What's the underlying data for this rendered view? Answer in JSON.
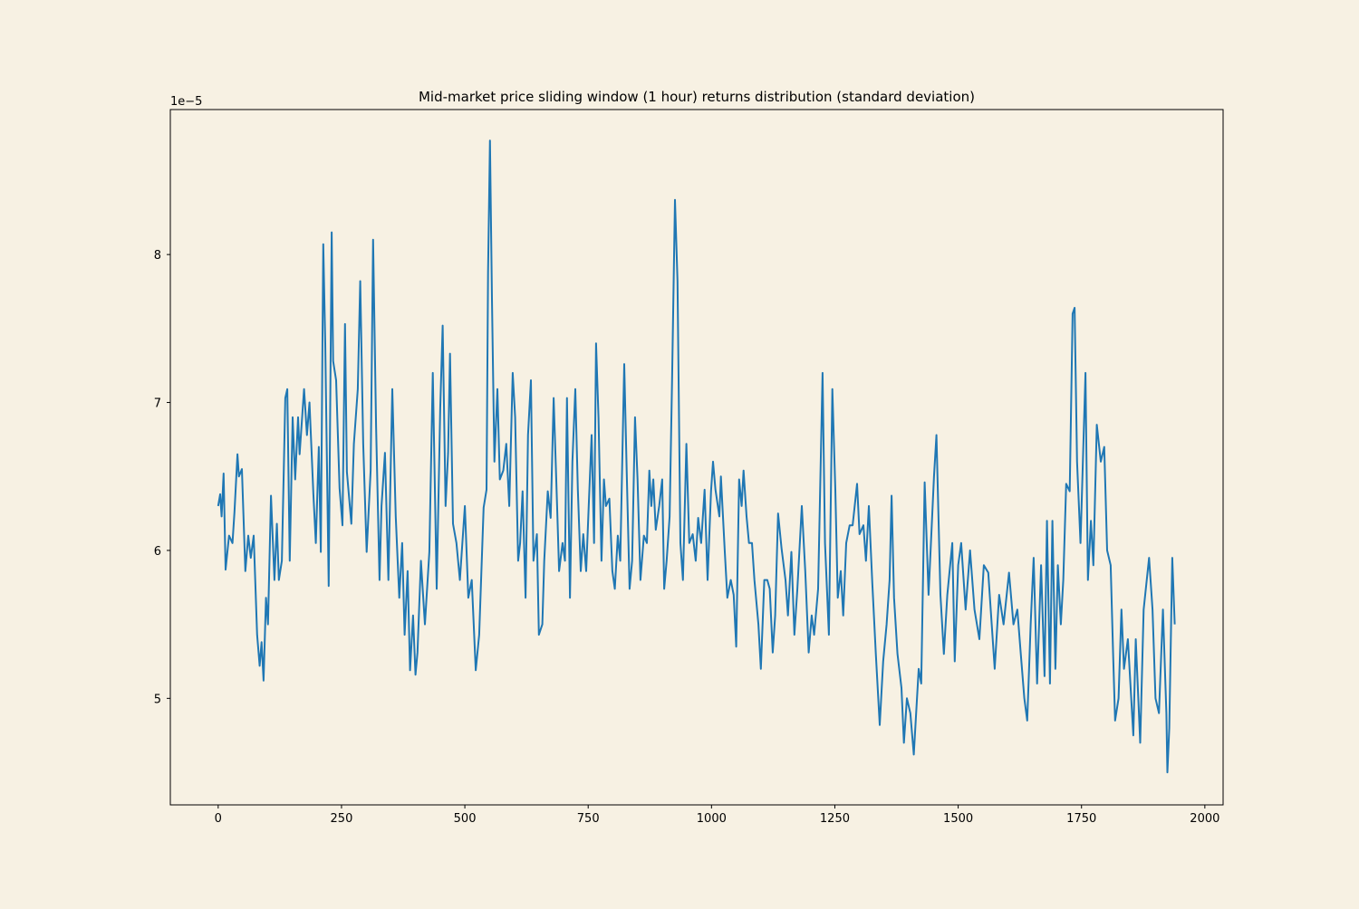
{
  "chart_data": {
    "type": "line",
    "title": "Mid-market price sliding window (1 hour) returns distribution (standard deviation)",
    "xlabel": "",
    "ylabel": "",
    "y_offset_label": "1e−5",
    "xlim": [
      -97,
      2037
    ],
    "ylim": [
      4.28,
      8.98
    ],
    "x_ticks": [
      0,
      250,
      500,
      750,
      1000,
      1250,
      1500,
      1750,
      2000
    ],
    "x_tick_labels": [
      "0",
      "250",
      "500",
      "750",
      "1000",
      "1250",
      "1500",
      "1750",
      "2000"
    ],
    "y_ticks": [
      5,
      6,
      7,
      8
    ],
    "y_tick_labels": [
      "5",
      "6",
      "7",
      "8"
    ],
    "grid": false,
    "colors": {
      "line": "#1f77b4",
      "background": "#f7f1e3"
    },
    "series": [
      {
        "points": [
          [
            0,
            6.3
          ],
          [
            4,
            6.38
          ],
          [
            7,
            6.23
          ],
          [
            11,
            6.52
          ],
          [
            15,
            5.87
          ],
          [
            22,
            6.1
          ],
          [
            29,
            6.05
          ],
          [
            33,
            6.26
          ],
          [
            39,
            6.65
          ],
          [
            42,
            6.5
          ],
          [
            48,
            6.55
          ],
          [
            55,
            5.86
          ],
          [
            61,
            6.1
          ],
          [
            66,
            5.95
          ],
          [
            72,
            6.1
          ],
          [
            79,
            5.43
          ],
          [
            84,
            5.22
          ],
          [
            88,
            5.38
          ],
          [
            92,
            5.12
          ],
          [
            97,
            5.68
          ],
          [
            101,
            5.5
          ],
          [
            107,
            6.37
          ],
          [
            114,
            5.8
          ],
          [
            119,
            6.18
          ],
          [
            123,
            5.8
          ],
          [
            129,
            5.93
          ],
          [
            136,
            7.03
          ],
          [
            140,
            7.09
          ],
          [
            145,
            5.93
          ],
          [
            151,
            6.9
          ],
          [
            156,
            6.48
          ],
          [
            162,
            6.9
          ],
          [
            165,
            6.65
          ],
          [
            174,
            7.09
          ],
          [
            180,
            6.78
          ],
          [
            185,
            7.0
          ],
          [
            193,
            6.38
          ],
          [
            198,
            6.05
          ],
          [
            204,
            6.7
          ],
          [
            208,
            5.99
          ],
          [
            213,
            8.07
          ],
          [
            217,
            7.4
          ],
          [
            224,
            5.76
          ],
          [
            230,
            8.15
          ],
          [
            233,
            7.28
          ],
          [
            239,
            7.15
          ],
          [
            246,
            6.42
          ],
          [
            252,
            6.17
          ],
          [
            257,
            7.53
          ],
          [
            261,
            6.53
          ],
          [
            270,
            6.18
          ],
          [
            275,
            6.72
          ],
          [
            283,
            7.09
          ],
          [
            288,
            7.82
          ],
          [
            294,
            6.72
          ],
          [
            301,
            5.99
          ],
          [
            309,
            6.54
          ],
          [
            314,
            8.1
          ],
          [
            320,
            6.84
          ],
          [
            327,
            5.8
          ],
          [
            331,
            6.3
          ],
          [
            338,
            6.66
          ],
          [
            345,
            5.8
          ],
          [
            353,
            7.09
          ],
          [
            360,
            6.23
          ],
          [
            367,
            5.68
          ],
          [
            373,
            6.05
          ],
          [
            378,
            5.43
          ],
          [
            384,
            5.86
          ],
          [
            389,
            5.19
          ],
          [
            395,
            5.56
          ],
          [
            400,
            5.16
          ],
          [
            404,
            5.31
          ],
          [
            411,
            5.93
          ],
          [
            419,
            5.5
          ],
          [
            428,
            5.99
          ],
          [
            435,
            7.2
          ],
          [
            443,
            5.74
          ],
          [
            450,
            6.96
          ],
          [
            455,
            7.52
          ],
          [
            461,
            6.3
          ],
          [
            466,
            6.66
          ],
          [
            470,
            7.33
          ],
          [
            476,
            6.18
          ],
          [
            483,
            6.05
          ],
          [
            490,
            5.8
          ],
          [
            500,
            6.3
          ],
          [
            507,
            5.68
          ],
          [
            514,
            5.8
          ],
          [
            522,
            5.19
          ],
          [
            529,
            5.43
          ],
          [
            538,
            6.29
          ],
          [
            544,
            6.41
          ],
          [
            547,
            7.88
          ],
          [
            551,
            8.77
          ],
          [
            555,
            7.7
          ],
          [
            560,
            6.6
          ],
          [
            566,
            7.09
          ],
          [
            571,
            6.48
          ],
          [
            578,
            6.54
          ],
          [
            584,
            6.72
          ],
          [
            590,
            6.3
          ],
          [
            597,
            7.2
          ],
          [
            602,
            6.9
          ],
          [
            608,
            5.93
          ],
          [
            612,
            6.05
          ],
          [
            617,
            6.4
          ],
          [
            623,
            5.68
          ],
          [
            628,
            6.78
          ],
          [
            634,
            7.15
          ],
          [
            639,
            5.93
          ],
          [
            646,
            6.11
          ],
          [
            650,
            5.43
          ],
          [
            657,
            5.5
          ],
          [
            661,
            5.93
          ],
          [
            668,
            6.4
          ],
          [
            674,
            6.22
          ],
          [
            680,
            7.03
          ],
          [
            687,
            6.3
          ],
          [
            691,
            5.86
          ],
          [
            698,
            6.05
          ],
          [
            703,
            5.93
          ],
          [
            707,
            7.03
          ],
          [
            713,
            5.68
          ],
          [
            718,
            6.6
          ],
          [
            724,
            7.09
          ],
          [
            729,
            6.41
          ],
          [
            735,
            5.86
          ],
          [
            740,
            6.11
          ],
          [
            746,
            5.86
          ],
          [
            751,
            6.3
          ],
          [
            757,
            6.78
          ],
          [
            762,
            6.05
          ],
          [
            766,
            7.4
          ],
          [
            771,
            6.9
          ],
          [
            777,
            5.93
          ],
          [
            782,
            6.48
          ],
          [
            786,
            6.3
          ],
          [
            793,
            6.35
          ],
          [
            799,
            5.86
          ],
          [
            804,
            5.74
          ],
          [
            810,
            6.1
          ],
          [
            815,
            5.93
          ],
          [
            823,
            7.26
          ],
          [
            828,
            6.54
          ],
          [
            834,
            5.74
          ],
          [
            839,
            5.93
          ],
          [
            845,
            6.9
          ],
          [
            850,
            6.48
          ],
          [
            856,
            5.8
          ],
          [
            863,
            6.1
          ],
          [
            869,
            6.05
          ],
          [
            874,
            6.54
          ],
          [
            878,
            6.3
          ],
          [
            882,
            6.48
          ],
          [
            887,
            6.14
          ],
          [
            894,
            6.3
          ],
          [
            900,
            6.48
          ],
          [
            904,
            5.74
          ],
          [
            909,
            5.93
          ],
          [
            915,
            6.23
          ],
          [
            920,
            7.15
          ],
          [
            926,
            8.37
          ],
          [
            931,
            7.82
          ],
          [
            937,
            6.05
          ],
          [
            942,
            5.8
          ],
          [
            949,
            6.72
          ],
          [
            955,
            6.05
          ],
          [
            962,
            6.11
          ],
          [
            968,
            5.93
          ],
          [
            973,
            6.22
          ],
          [
            979,
            6.05
          ],
          [
            986,
            6.41
          ],
          [
            992,
            5.8
          ],
          [
            999,
            6.4
          ],
          [
            1003,
            6.6
          ],
          [
            1008,
            6.41
          ],
          [
            1016,
            6.23
          ],
          [
            1019,
            6.5
          ],
          [
            1027,
            5.99
          ],
          [
            1032,
            5.68
          ],
          [
            1039,
            5.8
          ],
          [
            1045,
            5.7
          ],
          [
            1050,
            5.35
          ],
          [
            1056,
            6.48
          ],
          [
            1061,
            6.3
          ],
          [
            1065,
            6.54
          ],
          [
            1071,
            6.23
          ],
          [
            1076,
            6.05
          ],
          [
            1082,
            6.05
          ],
          [
            1087,
            5.8
          ],
          [
            1095,
            5.5
          ],
          [
            1100,
            5.2
          ],
          [
            1107,
            5.8
          ],
          [
            1113,
            5.8
          ],
          [
            1118,
            5.74
          ],
          [
            1124,
            5.31
          ],
          [
            1129,
            5.56
          ],
          [
            1135,
            6.25
          ],
          [
            1142,
            6.01
          ],
          [
            1150,
            5.8
          ],
          [
            1155,
            5.56
          ],
          [
            1162,
            5.99
          ],
          [
            1168,
            5.43
          ],
          [
            1174,
            5.74
          ],
          [
            1183,
            6.3
          ],
          [
            1190,
            5.86
          ],
          [
            1197,
            5.31
          ],
          [
            1203,
            5.56
          ],
          [
            1208,
            5.43
          ],
          [
            1216,
            5.74
          ],
          [
            1225,
            7.2
          ],
          [
            1230,
            6.05
          ],
          [
            1238,
            5.43
          ],
          [
            1245,
            7.09
          ],
          [
            1251,
            6.41
          ],
          [
            1256,
            5.68
          ],
          [
            1262,
            5.86
          ],
          [
            1267,
            5.56
          ],
          [
            1273,
            6.05
          ],
          [
            1280,
            6.17
          ],
          [
            1286,
            6.17
          ],
          [
            1295,
            6.45
          ],
          [
            1300,
            6.11
          ],
          [
            1308,
            6.17
          ],
          [
            1313,
            5.93
          ],
          [
            1319,
            6.3
          ],
          [
            1326,
            5.78
          ],
          [
            1333,
            5.3
          ],
          [
            1341,
            4.82
          ],
          [
            1348,
            5.25
          ],
          [
            1355,
            5.5
          ],
          [
            1361,
            5.8
          ],
          [
            1365,
            6.37
          ],
          [
            1370,
            5.68
          ],
          [
            1377,
            5.3
          ],
          [
            1385,
            5.07
          ],
          [
            1390,
            4.7
          ],
          [
            1396,
            5.0
          ],
          [
            1403,
            4.9
          ],
          [
            1410,
            4.62
          ],
          [
            1420,
            5.2
          ],
          [
            1425,
            5.1
          ],
          [
            1432,
            6.46
          ],
          [
            1440,
            5.7
          ],
          [
            1451,
            6.5
          ],
          [
            1456,
            6.78
          ],
          [
            1464,
            5.7
          ],
          [
            1471,
            5.3
          ],
          [
            1478,
            5.7
          ],
          [
            1488,
            6.05
          ],
          [
            1493,
            5.25
          ],
          [
            1500,
            5.9
          ],
          [
            1506,
            6.05
          ],
          [
            1515,
            5.6
          ],
          [
            1524,
            6.0
          ],
          [
            1533,
            5.6
          ],
          [
            1543,
            5.4
          ],
          [
            1552,
            5.9
          ],
          [
            1561,
            5.85
          ],
          [
            1568,
            5.5
          ],
          [
            1574,
            5.2
          ],
          [
            1583,
            5.7
          ],
          [
            1592,
            5.5
          ],
          [
            1603,
            5.85
          ],
          [
            1612,
            5.5
          ],
          [
            1620,
            5.6
          ],
          [
            1627,
            5.3
          ],
          [
            1634,
            5.0
          ],
          [
            1640,
            4.85
          ],
          [
            1647,
            5.5
          ],
          [
            1653,
            5.95
          ],
          [
            1660,
            5.1
          ],
          [
            1668,
            5.9
          ],
          [
            1675,
            5.15
          ],
          [
            1680,
            6.2
          ],
          [
            1686,
            5.1
          ],
          [
            1691,
            6.2
          ],
          [
            1697,
            5.2
          ],
          [
            1702,
            5.9
          ],
          [
            1708,
            5.5
          ],
          [
            1713,
            5.8
          ],
          [
            1719,
            6.45
          ],
          [
            1726,
            6.4
          ],
          [
            1732,
            7.6
          ],
          [
            1736,
            7.64
          ],
          [
            1741,
            6.6
          ],
          [
            1748,
            6.05
          ],
          [
            1758,
            7.2
          ],
          [
            1763,
            5.8
          ],
          [
            1769,
            6.2
          ],
          [
            1774,
            5.9
          ],
          [
            1781,
            6.85
          ],
          [
            1789,
            6.6
          ],
          [
            1796,
            6.7
          ],
          [
            1802,
            6.0
          ],
          [
            1809,
            5.9
          ],
          [
            1814,
            5.3
          ],
          [
            1818,
            4.85
          ],
          [
            1825,
            5.0
          ],
          [
            1831,
            5.6
          ],
          [
            1836,
            5.2
          ],
          [
            1844,
            5.4
          ],
          [
            1855,
            4.75
          ],
          [
            1860,
            5.4
          ],
          [
            1869,
            4.7
          ],
          [
            1876,
            5.6
          ],
          [
            1887,
            5.95
          ],
          [
            1894,
            5.6
          ],
          [
            1900,
            5.0
          ],
          [
            1907,
            4.9
          ],
          [
            1915,
            5.6
          ],
          [
            1922,
            4.9
          ],
          [
            1924,
            4.5
          ],
          [
            1928,
            4.8
          ],
          [
            1934,
            5.95
          ],
          [
            1939,
            5.5
          ]
        ]
      }
    ]
  }
}
